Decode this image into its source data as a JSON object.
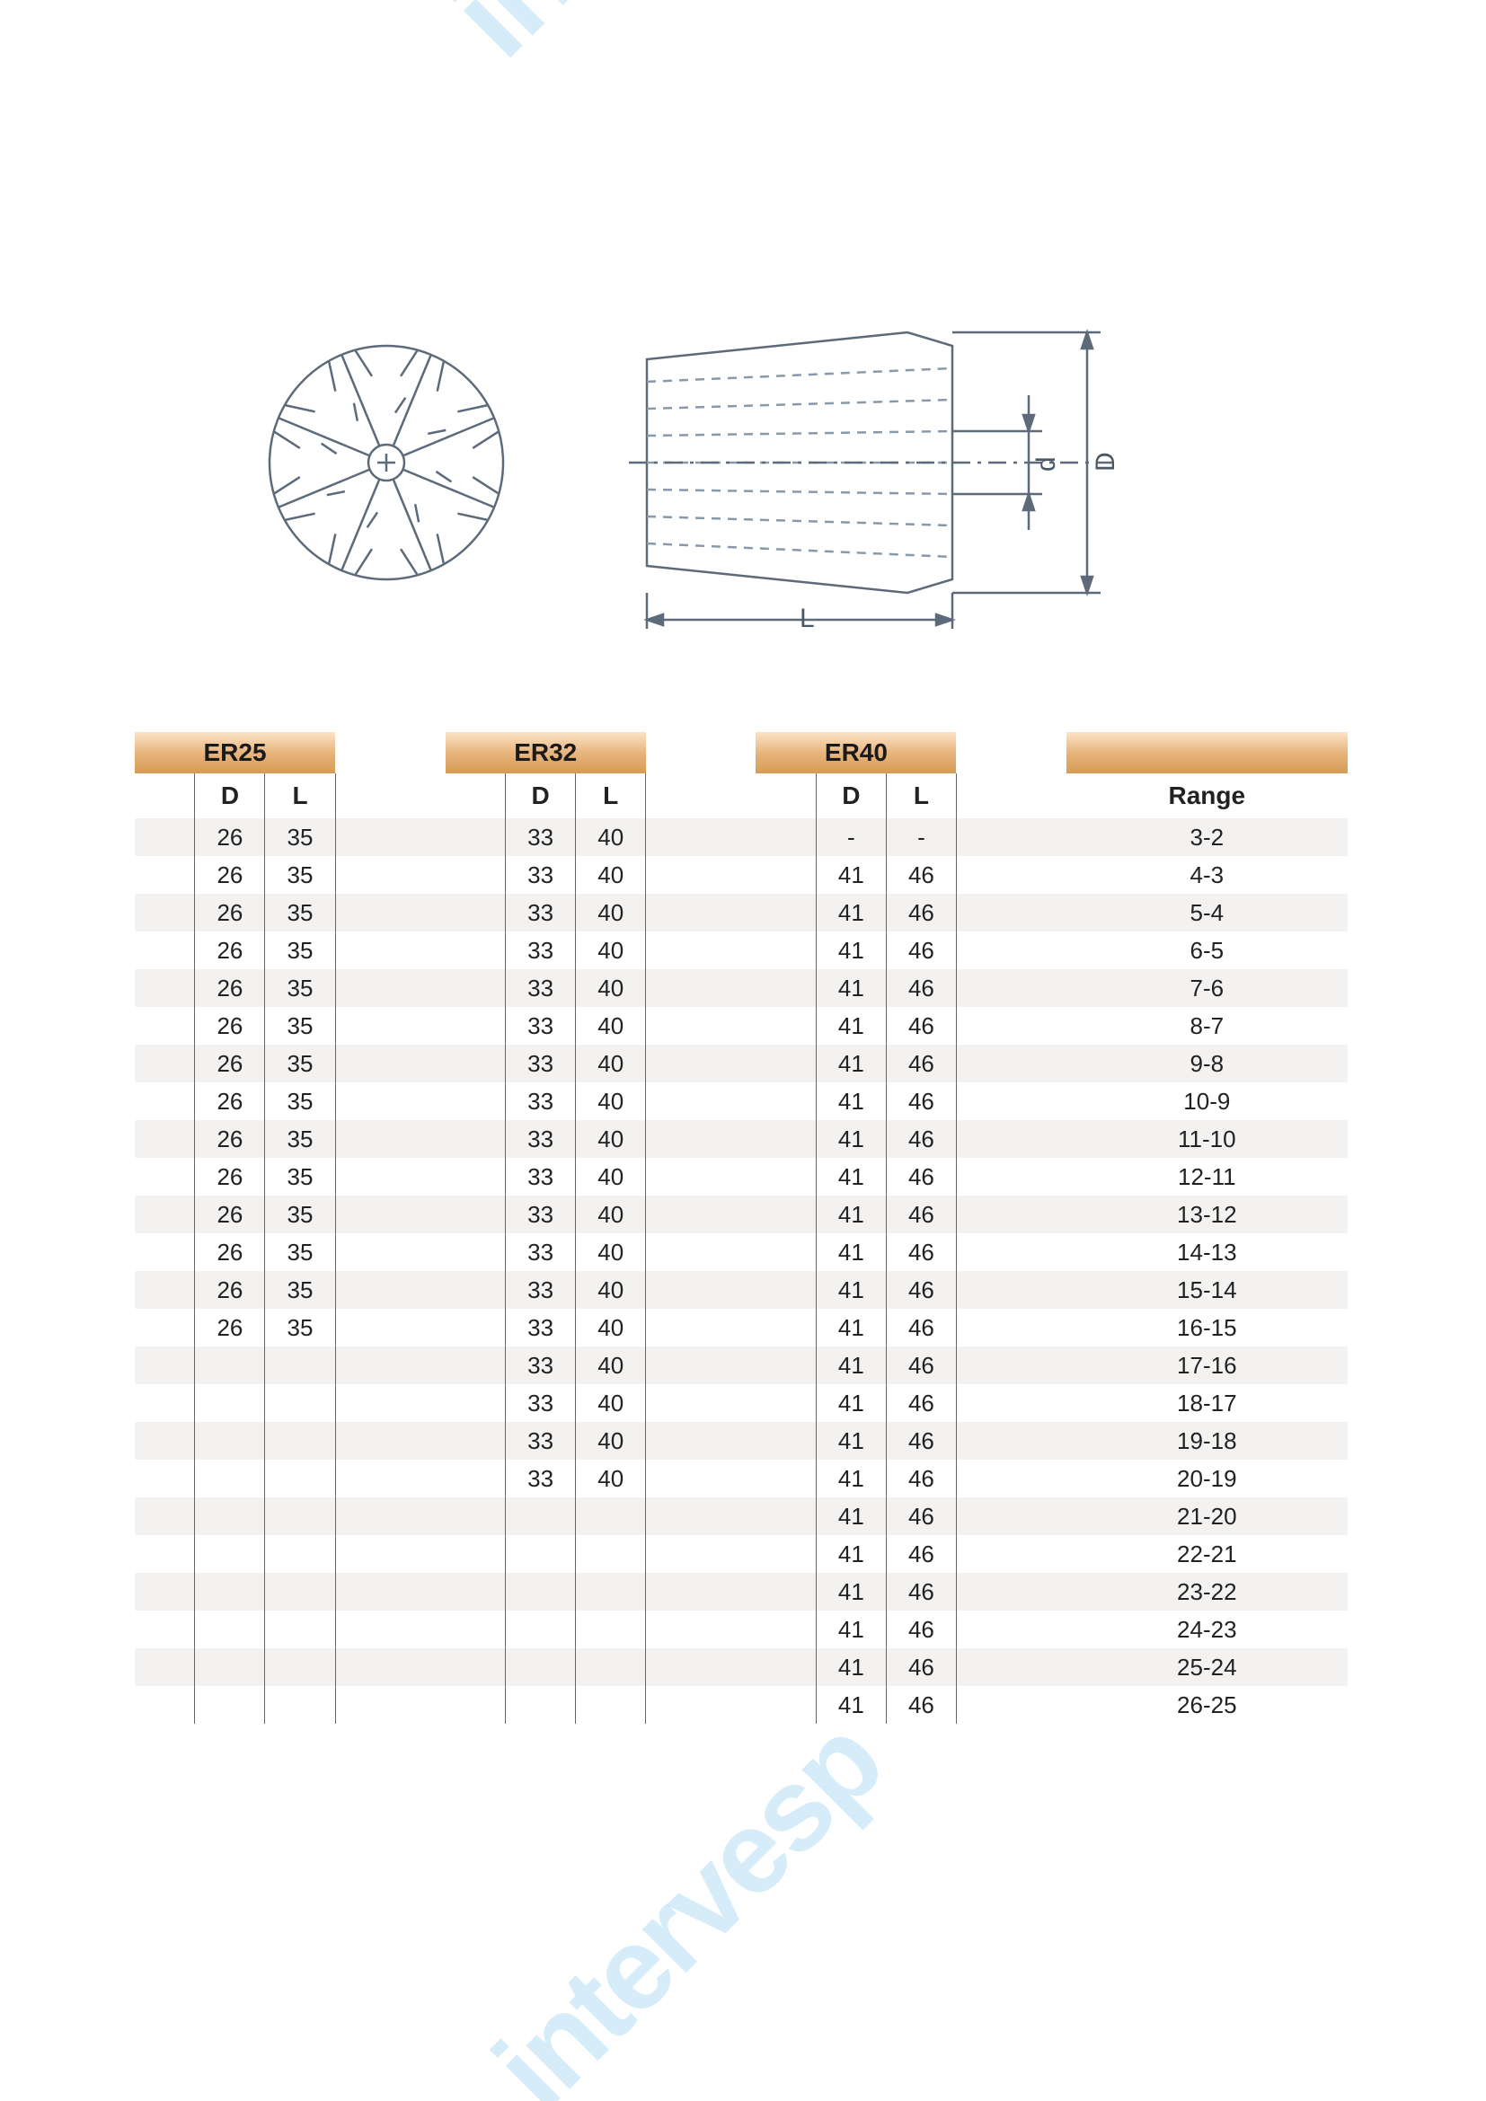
{
  "watermark_text": "intervesp",
  "diagram": {
    "stroke": "#5c6a7a",
    "dash": "#8899aa",
    "labels": {
      "L": "L",
      "D": "D",
      "d": "d"
    },
    "label_color": "#4a5866",
    "label_fontsize": 30
  },
  "table": {
    "header_gradient": [
      "#fce3c6",
      "#e8b57d",
      "#d69a55"
    ],
    "row_stripe_color": "#f3f2f0",
    "text_color": "#222222",
    "border_color": "#666666",
    "fontsize": 26,
    "header_fontsize": 28,
    "groups": [
      "ER25",
      "ER32",
      "ER40"
    ],
    "sub_cols": [
      "D",
      "L"
    ],
    "range_header": "Range",
    "rows": [
      {
        "er25": [
          "26",
          "35"
        ],
        "er32": [
          "33",
          "40"
        ],
        "er40": [
          "-",
          "-"
        ],
        "range": "3-2"
      },
      {
        "er25": [
          "26",
          "35"
        ],
        "er32": [
          "33",
          "40"
        ],
        "er40": [
          "41",
          "46"
        ],
        "range": "4-3"
      },
      {
        "er25": [
          "26",
          "35"
        ],
        "er32": [
          "33",
          "40"
        ],
        "er40": [
          "41",
          "46"
        ],
        "range": "5-4"
      },
      {
        "er25": [
          "26",
          "35"
        ],
        "er32": [
          "33",
          "40"
        ],
        "er40": [
          "41",
          "46"
        ],
        "range": "6-5"
      },
      {
        "er25": [
          "26",
          "35"
        ],
        "er32": [
          "33",
          "40"
        ],
        "er40": [
          "41",
          "46"
        ],
        "range": "7-6"
      },
      {
        "er25": [
          "26",
          "35"
        ],
        "er32": [
          "33",
          "40"
        ],
        "er40": [
          "41",
          "46"
        ],
        "range": "8-7"
      },
      {
        "er25": [
          "26",
          "35"
        ],
        "er32": [
          "33",
          "40"
        ],
        "er40": [
          "41",
          "46"
        ],
        "range": "9-8"
      },
      {
        "er25": [
          "26",
          "35"
        ],
        "er32": [
          "33",
          "40"
        ],
        "er40": [
          "41",
          "46"
        ],
        "range": "10-9"
      },
      {
        "er25": [
          "26",
          "35"
        ],
        "er32": [
          "33",
          "40"
        ],
        "er40": [
          "41",
          "46"
        ],
        "range": "11-10"
      },
      {
        "er25": [
          "26",
          "35"
        ],
        "er32": [
          "33",
          "40"
        ],
        "er40": [
          "41",
          "46"
        ],
        "range": "12-11"
      },
      {
        "er25": [
          "26",
          "35"
        ],
        "er32": [
          "33",
          "40"
        ],
        "er40": [
          "41",
          "46"
        ],
        "range": "13-12"
      },
      {
        "er25": [
          "26",
          "35"
        ],
        "er32": [
          "33",
          "40"
        ],
        "er40": [
          "41",
          "46"
        ],
        "range": "14-13"
      },
      {
        "er25": [
          "26",
          "35"
        ],
        "er32": [
          "33",
          "40"
        ],
        "er40": [
          "41",
          "46"
        ],
        "range": "15-14"
      },
      {
        "er25": [
          "26",
          "35"
        ],
        "er32": [
          "33",
          "40"
        ],
        "er40": [
          "41",
          "46"
        ],
        "range": "16-15"
      },
      {
        "er25": [
          "",
          ""
        ],
        "er32": [
          "33",
          "40"
        ],
        "er40": [
          "41",
          "46"
        ],
        "range": "17-16"
      },
      {
        "er25": [
          "",
          ""
        ],
        "er32": [
          "33",
          "40"
        ],
        "er40": [
          "41",
          "46"
        ],
        "range": "18-17"
      },
      {
        "er25": [
          "",
          ""
        ],
        "er32": [
          "33",
          "40"
        ],
        "er40": [
          "41",
          "46"
        ],
        "range": "19-18"
      },
      {
        "er25": [
          "",
          ""
        ],
        "er32": [
          "33",
          "40"
        ],
        "er40": [
          "41",
          "46"
        ],
        "range": "20-19"
      },
      {
        "er25": [
          "",
          ""
        ],
        "er32": [
          "",
          ""
        ],
        "er40": [
          "41",
          "46"
        ],
        "range": "21-20"
      },
      {
        "er25": [
          "",
          ""
        ],
        "er32": [
          "",
          ""
        ],
        "er40": [
          "41",
          "46"
        ],
        "range": "22-21"
      },
      {
        "er25": [
          "",
          ""
        ],
        "er32": [
          "",
          ""
        ],
        "er40": [
          "41",
          "46"
        ],
        "range": "23-22"
      },
      {
        "er25": [
          "",
          ""
        ],
        "er32": [
          "",
          ""
        ],
        "er40": [
          "41",
          "46"
        ],
        "range": "24-23"
      },
      {
        "er25": [
          "",
          ""
        ],
        "er32": [
          "",
          ""
        ],
        "er40": [
          "41",
          "46"
        ],
        "range": "25-24"
      },
      {
        "er25": [
          "",
          ""
        ],
        "er32": [
          "",
          ""
        ],
        "er40": [
          "41",
          "46"
        ],
        "range": "26-25"
      }
    ]
  }
}
